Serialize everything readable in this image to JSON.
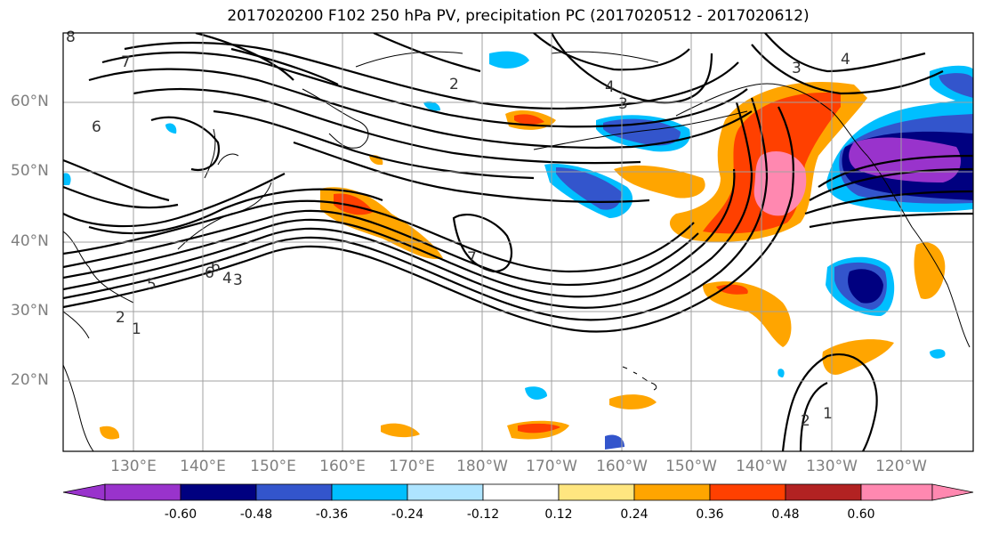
{
  "title": "2017020200 F102 250 hPa PV, precipitation PC (2017020512 - 2017020612)",
  "lat_labels": [
    "60°N",
    "50°N",
    "40°N",
    "30°N",
    "20°N"
  ],
  "lon_labels": [
    "130°E",
    "140°E",
    "150°E",
    "160°E",
    "170°E",
    "180°W",
    "170°W",
    "160°W",
    "150°W",
    "140°W",
    "130°W",
    "120°W"
  ],
  "colorbar": {
    "colors": [
      "#9933cc",
      "#000080",
      "#3355cc",
      "#00bfff",
      "#aee4ff",
      "#ffffff",
      "#ffe680",
      "#ffa500",
      "#ff4000",
      "#b22222",
      "#ff88b0"
    ],
    "ticks": [
      "-0.60",
      "-0.48",
      "-0.36",
      "-0.24",
      "-0.12",
      "0.12",
      "0.24",
      "0.36",
      "0.48",
      "0.60"
    ]
  },
  "contour_labels": [
    "8",
    "7",
    "6",
    "2",
    "4",
    "3",
    "6",
    "5",
    "6",
    "4",
    "3",
    "2",
    "1",
    "7",
    "3",
    "4",
    "2",
    "1"
  ]
}
